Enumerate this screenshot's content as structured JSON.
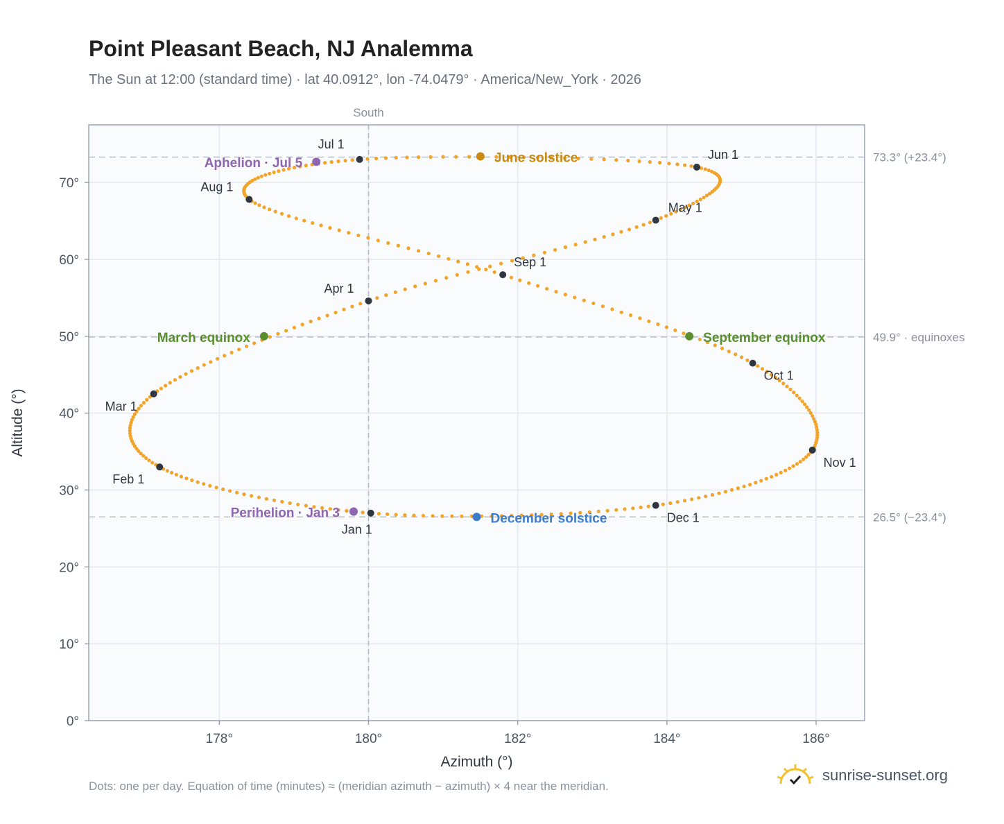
{
  "header": {
    "title": "Point Pleasant Beach, NJ Analemma",
    "subtitle": "The Sun at 12:00 (standard time) · lat 40.0912°, lon -74.0479° · America/New_York · 2026"
  },
  "footer": {
    "note": "Dots: one per day. Equation of time (minutes) ≈ (meridian azimuth − azimuth) × 4 near the meridian.",
    "brand": "sunrise-sunset.org"
  },
  "chart_data": {
    "type": "scatter",
    "title": "Point Pleasant Beach, NJ Analemma",
    "xlabel": "Azimuth (°)",
    "ylabel": "Altitude (°)",
    "xlim": [
      176.25,
      186.65
    ],
    "ylim": [
      0,
      77.5
    ],
    "x_ticks": [
      178,
      180,
      182,
      184,
      186
    ],
    "x_tick_labels": [
      "178°",
      "180°",
      "182°",
      "184°",
      "186°"
    ],
    "y_ticks": [
      0,
      10,
      20,
      30,
      40,
      50,
      60,
      70
    ],
    "y_tick_labels": [
      "0°",
      "10°",
      "20°",
      "30°",
      "40°",
      "50°",
      "60°",
      "70°"
    ],
    "grid": true,
    "meridian": {
      "x": 180,
      "label": "South"
    },
    "reference_lines": [
      {
        "y": 73.3,
        "label": "73.3° (+23.4°)"
      },
      {
        "y": 49.9,
        "label": "49.9° · equinoxes"
      },
      {
        "y": 26.5,
        "label": "26.5° (−23.4°)"
      }
    ],
    "path_color": "#f2a32a",
    "month_markers": [
      {
        "label": "Jan 1",
        "azimuth": 180.03,
        "altitude": 27.0
      },
      {
        "label": "Feb 1",
        "azimuth": 177.2,
        "altitude": 33.0
      },
      {
        "label": "Mar 1",
        "azimuth": 177.12,
        "altitude": 42.5
      },
      {
        "label": "Apr 1",
        "azimuth": 180.0,
        "altitude": 54.6
      },
      {
        "label": "May 1",
        "azimuth": 183.85,
        "altitude": 65.1
      },
      {
        "label": "Jun 1",
        "azimuth": 184.4,
        "altitude": 72.0
      },
      {
        "label": "Jul 1",
        "azimuth": 179.88,
        "altitude": 73.0
      },
      {
        "label": "Aug 1",
        "azimuth": 178.4,
        "altitude": 67.8
      },
      {
        "label": "Sep 1",
        "azimuth": 181.8,
        "altitude": 58.0
      },
      {
        "label": "Oct 1",
        "azimuth": 185.15,
        "altitude": 46.5
      },
      {
        "label": "Nov 1",
        "azimuth": 185.95,
        "altitude": 35.2
      },
      {
        "label": "Dec 1",
        "azimuth": 183.85,
        "altitude": 28.0
      }
    ],
    "events": [
      {
        "label": "June solstice",
        "azimuth": 181.5,
        "altitude": 73.4,
        "color": "#c98a12"
      },
      {
        "label": "December solstice",
        "azimuth": 181.45,
        "altitude": 26.5,
        "color": "#3d7cc9"
      },
      {
        "label": "March equinox",
        "azimuth": 178.6,
        "altitude": 50.0,
        "color": "#5a8f2e"
      },
      {
        "label": "September equinox",
        "azimuth": 184.3,
        "altitude": 50.0,
        "color": "#5a8f2e"
      },
      {
        "label": "Aphelion · Jul 5",
        "azimuth": 179.3,
        "altitude": 72.7,
        "color": "#8e65b0"
      },
      {
        "label": "Perihelion · Jan 3",
        "azimuth": 179.8,
        "altitude": 27.2,
        "color": "#8e65b0"
      }
    ]
  }
}
